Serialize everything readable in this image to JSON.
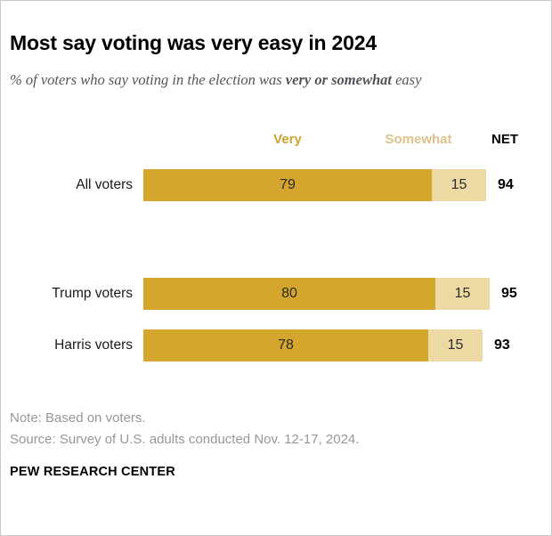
{
  "title": "Most say voting was very easy in 2024",
  "subtitle": {
    "prefix": "% of voters who say voting in the election was ",
    "bold": "very or somewhat",
    "suffix": " easy"
  },
  "legend": {
    "very": "Very",
    "somewhat": "Somewhat",
    "net": "NET"
  },
  "chart_data": {
    "type": "bar",
    "stacked": true,
    "orientation": "horizontal",
    "title": "Most say voting was very easy in 2024",
    "categories": [
      "All voters",
      "Trump voters",
      "Harris voters"
    ],
    "series": [
      {
        "name": "Very",
        "values": [
          79,
          80,
          78
        ],
        "color": "#d4a62d"
      },
      {
        "name": "Somewhat",
        "values": [
          15,
          15,
          15
        ],
        "color": "#ecd9a4"
      }
    ],
    "net_label": "NET",
    "net_values": [
      94,
      95,
      93
    ],
    "xlim": [
      0,
      100
    ],
    "grid": false,
    "legend_position": "top",
    "value_labels": "inside"
  },
  "note": "Note: Based on voters.",
  "source": "Source: Survey of U.S. adults conducted Nov. 12-17, 2024.",
  "footer": "PEW RESEARCH CENTER",
  "colors": {
    "very": "#d4a62d",
    "somewhat": "#ecd9a4",
    "very_header": "#cda32f",
    "somewhat_header": "#dcc18a",
    "subtitle": "#53565a",
    "note": "#979797"
  }
}
